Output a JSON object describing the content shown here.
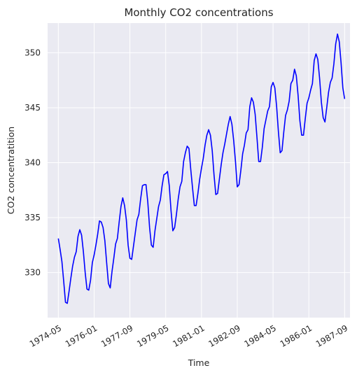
{
  "chart_data": {
    "type": "line",
    "title": "Monthly CO2 concentrations",
    "xlabel": "Time",
    "ylabel": "CO2 concentratition",
    "x_tick_labels": [
      "1974-05",
      "1976-01",
      "1977-09",
      "1979-05",
      "1981-01",
      "1982-09",
      "1984-05",
      "1986-01",
      "1987-09"
    ],
    "y_tick_labels": [
      "330",
      "335",
      "340",
      "345",
      "350"
    ],
    "y_ticks": [
      330,
      335,
      340,
      345,
      350
    ],
    "ylim": [
      325.9,
      352.7
    ],
    "xlim": [
      "1973-11",
      "1987-12"
    ],
    "grid": true,
    "style": "seaborn darkgrid",
    "colors": {
      "line": "#0000ff",
      "background": "#eaeaf2",
      "grid": "#ffffff"
    },
    "series": [
      {
        "x": [
          "1974-05",
          "1974-06",
          "1974-07",
          "1974-08",
          "1974-09",
          "1974-10",
          "1974-11",
          "1974-12",
          "1975-01",
          "1975-02",
          "1975-03",
          "1975-04",
          "1975-05",
          "1975-06",
          "1975-07",
          "1975-08",
          "1975-09",
          "1975-10",
          "1975-11",
          "1975-12",
          "1976-01",
          "1976-02",
          "1976-03",
          "1976-04",
          "1976-05",
          "1976-06",
          "1976-07",
          "1976-08",
          "1976-09",
          "1976-10",
          "1976-11",
          "1976-12",
          "1977-01",
          "1977-02",
          "1977-03",
          "1977-04",
          "1977-05",
          "1977-06",
          "1977-07",
          "1977-08",
          "1977-09",
          "1977-10",
          "1977-11",
          "1977-12",
          "1978-01",
          "1978-02",
          "1978-03",
          "1978-04",
          "1978-05",
          "1978-06",
          "1978-07",
          "1978-08",
          "1978-09",
          "1978-10",
          "1978-11",
          "1978-12",
          "1979-01",
          "1979-02",
          "1979-03",
          "1979-04",
          "1979-05",
          "1979-06",
          "1979-07",
          "1979-08",
          "1979-09",
          "1979-10",
          "1979-11",
          "1979-12",
          "1980-01",
          "1980-02",
          "1980-03",
          "1980-04",
          "1980-05",
          "1980-06",
          "1980-07",
          "1980-08",
          "1980-09",
          "1980-10",
          "1980-11",
          "1980-12",
          "1981-01",
          "1981-02",
          "1981-03",
          "1981-04",
          "1981-05",
          "1981-06",
          "1981-07",
          "1981-08",
          "1981-09",
          "1981-10",
          "1981-11",
          "1981-12",
          "1982-01",
          "1982-02",
          "1982-03",
          "1982-04",
          "1982-05",
          "1982-06",
          "1982-07",
          "1982-08",
          "1982-09",
          "1982-10",
          "1982-11",
          "1982-12",
          "1983-01",
          "1983-02",
          "1983-03",
          "1983-04",
          "1983-05",
          "1983-06",
          "1983-07",
          "1983-08",
          "1983-09",
          "1983-10",
          "1983-11",
          "1983-12",
          "1984-01",
          "1984-02",
          "1984-03",
          "1984-04",
          "1984-05",
          "1984-06",
          "1984-07",
          "1984-08",
          "1984-09",
          "1984-10",
          "1984-11",
          "1984-12",
          "1985-01",
          "1985-02",
          "1985-03",
          "1985-04",
          "1985-05",
          "1985-06",
          "1985-07",
          "1985-08",
          "1985-09",
          "1985-10",
          "1985-11",
          "1985-12",
          "1986-01",
          "1986-02",
          "1986-03",
          "1986-04",
          "1986-05",
          "1986-06",
          "1986-07",
          "1986-08",
          "1986-09",
          "1986-10",
          "1986-11",
          "1986-12",
          "1987-01",
          "1987-02",
          "1987-03",
          "1987-04",
          "1987-05",
          "1987-06",
          "1987-07",
          "1987-08",
          "1987-09"
        ],
        "values": [
          333.1,
          332.1,
          331.0,
          329.2,
          327.3,
          327.2,
          328.3,
          329.5,
          330.6,
          331.4,
          331.9,
          333.3,
          333.9,
          333.4,
          331.9,
          330.0,
          328.5,
          328.4,
          329.3,
          330.9,
          331.6,
          332.5,
          333.5,
          334.7,
          334.6,
          334.1,
          332.9,
          330.9,
          329.0,
          328.6,
          330.1,
          331.3,
          332.6,
          333.1,
          334.6,
          336.0,
          336.8,
          336.1,
          334.8,
          332.5,
          331.3,
          331.2,
          332.4,
          333.6,
          334.8,
          335.3,
          336.7,
          337.9,
          338.0,
          338.0,
          336.4,
          334.1,
          332.5,
          332.3,
          333.8,
          334.9,
          336.0,
          336.6,
          337.9,
          338.9,
          339.0,
          339.2,
          337.9,
          335.6,
          333.8,
          334.1,
          335.3,
          336.7,
          337.8,
          338.3,
          340.1,
          340.9,
          341.5,
          341.3,
          339.4,
          337.7,
          336.1,
          336.1,
          337.2,
          338.5,
          339.5,
          340.4,
          341.6,
          342.5,
          343.0,
          342.5,
          341.1,
          338.9,
          337.1,
          337.2,
          338.5,
          339.8,
          340.9,
          341.7,
          342.6,
          343.5,
          344.2,
          343.5,
          342.0,
          340.1,
          337.8,
          338.0,
          339.3,
          340.8,
          341.6,
          342.7,
          343.0,
          345.1,
          345.9,
          345.5,
          344.4,
          342.3,
          340.1,
          340.1,
          341.4,
          343.1,
          343.9,
          344.7,
          345.1,
          346.9,
          347.3,
          346.8,
          345.1,
          342.8,
          340.9,
          341.1,
          342.8,
          344.3,
          344.8,
          345.6,
          347.2,
          347.5,
          348.5,
          347.9,
          346.1,
          343.8,
          342.5,
          342.5,
          344.0,
          345.4,
          345.9,
          346.6,
          347.2,
          349.3,
          349.9,
          349.4,
          347.7,
          345.5,
          344.1,
          343.7,
          345.0,
          346.4,
          347.3,
          347.7,
          349.0,
          350.8,
          351.7,
          351.0,
          349.1,
          346.8,
          345.8
        ]
      }
    ]
  }
}
